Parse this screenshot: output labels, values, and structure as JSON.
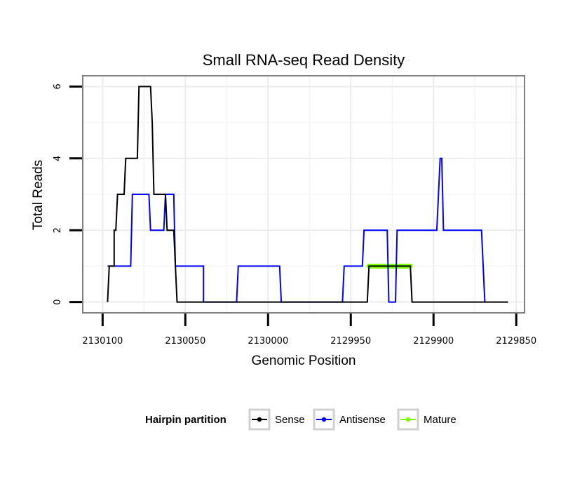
{
  "chart_data": {
    "type": "line",
    "title": "Small RNA-seq Read Density",
    "xlabel": "Genomic Position",
    "ylabel": "Total Reads",
    "xlim": [
      2130112,
      2129845
    ],
    "ylim": [
      -0.3,
      6.3
    ],
    "x_reversed": true,
    "x_ticks": [
      2130100,
      2130050,
      2130000,
      2129950,
      2129900,
      2129850
    ],
    "x_tick_labels": [
      "2130100",
      "2130050",
      "2130000",
      "2129950",
      "2129900",
      "2129850"
    ],
    "y_ticks": [
      0,
      2,
      4,
      6
    ],
    "y_tick_labels": [
      "0",
      "2",
      "4",
      "6"
    ],
    "grid": true,
    "legend": {
      "title": "Hairpin partition",
      "position": "bottom",
      "entries": [
        "Sense",
        "Antisense",
        "Mature"
      ]
    },
    "series": [
      {
        "name": "Sense",
        "color": "#000000",
        "points": [
          [
            2130097,
            0
          ],
          [
            2130096,
            1
          ],
          [
            2130093,
            1
          ],
          [
            2130093,
            2
          ],
          [
            2130092,
            2
          ],
          [
            2130091,
            3
          ],
          [
            2130087,
            3
          ],
          [
            2130086,
            4
          ],
          [
            2130079,
            4
          ],
          [
            2130078,
            6
          ],
          [
            2130071,
            6
          ],
          [
            2130070,
            5
          ],
          [
            2130069,
            3
          ],
          [
            2130062,
            3
          ],
          [
            2130061,
            2
          ],
          [
            2130057,
            2
          ],
          [
            2130055,
            0
          ],
          [
            2129940,
            0
          ],
          [
            2129939,
            1
          ],
          [
            2129914,
            1
          ],
          [
            2129913,
            0
          ],
          [
            2129855,
            0
          ]
        ]
      },
      {
        "name": "Antisense",
        "color": "#0000ff",
        "points": [
          [
            2130097,
            1
          ],
          [
            2130083,
            1
          ],
          [
            2130082,
            3
          ],
          [
            2130072,
            3
          ],
          [
            2130071,
            2
          ],
          [
            2130063,
            2
          ],
          [
            2130062,
            3
          ],
          [
            2130057,
            3
          ],
          [
            2130056,
            1
          ],
          [
            2130039,
            1
          ],
          [
            2130039,
            0
          ],
          [
            2130019,
            0
          ],
          [
            2130018,
            1
          ],
          [
            2129993,
            1
          ],
          [
            2129992,
            0
          ],
          [
            2129955,
            0
          ],
          [
            2129954,
            1
          ],
          [
            2129943,
            1
          ],
          [
            2129942,
            2
          ],
          [
            2129928,
            2
          ],
          [
            2129927,
            0
          ],
          [
            2129923,
            0
          ],
          [
            2129922,
            2
          ],
          [
            2129898,
            2
          ],
          [
            2129896,
            4
          ],
          [
            2129895,
            4
          ],
          [
            2129894,
            2
          ],
          [
            2129871,
            2
          ],
          [
            2129869,
            0
          ]
        ]
      },
      {
        "name": "Mature",
        "color": "#7fff00",
        "points": [
          [
            2129939,
            1
          ],
          [
            2129914,
            1
          ]
        ]
      }
    ]
  }
}
